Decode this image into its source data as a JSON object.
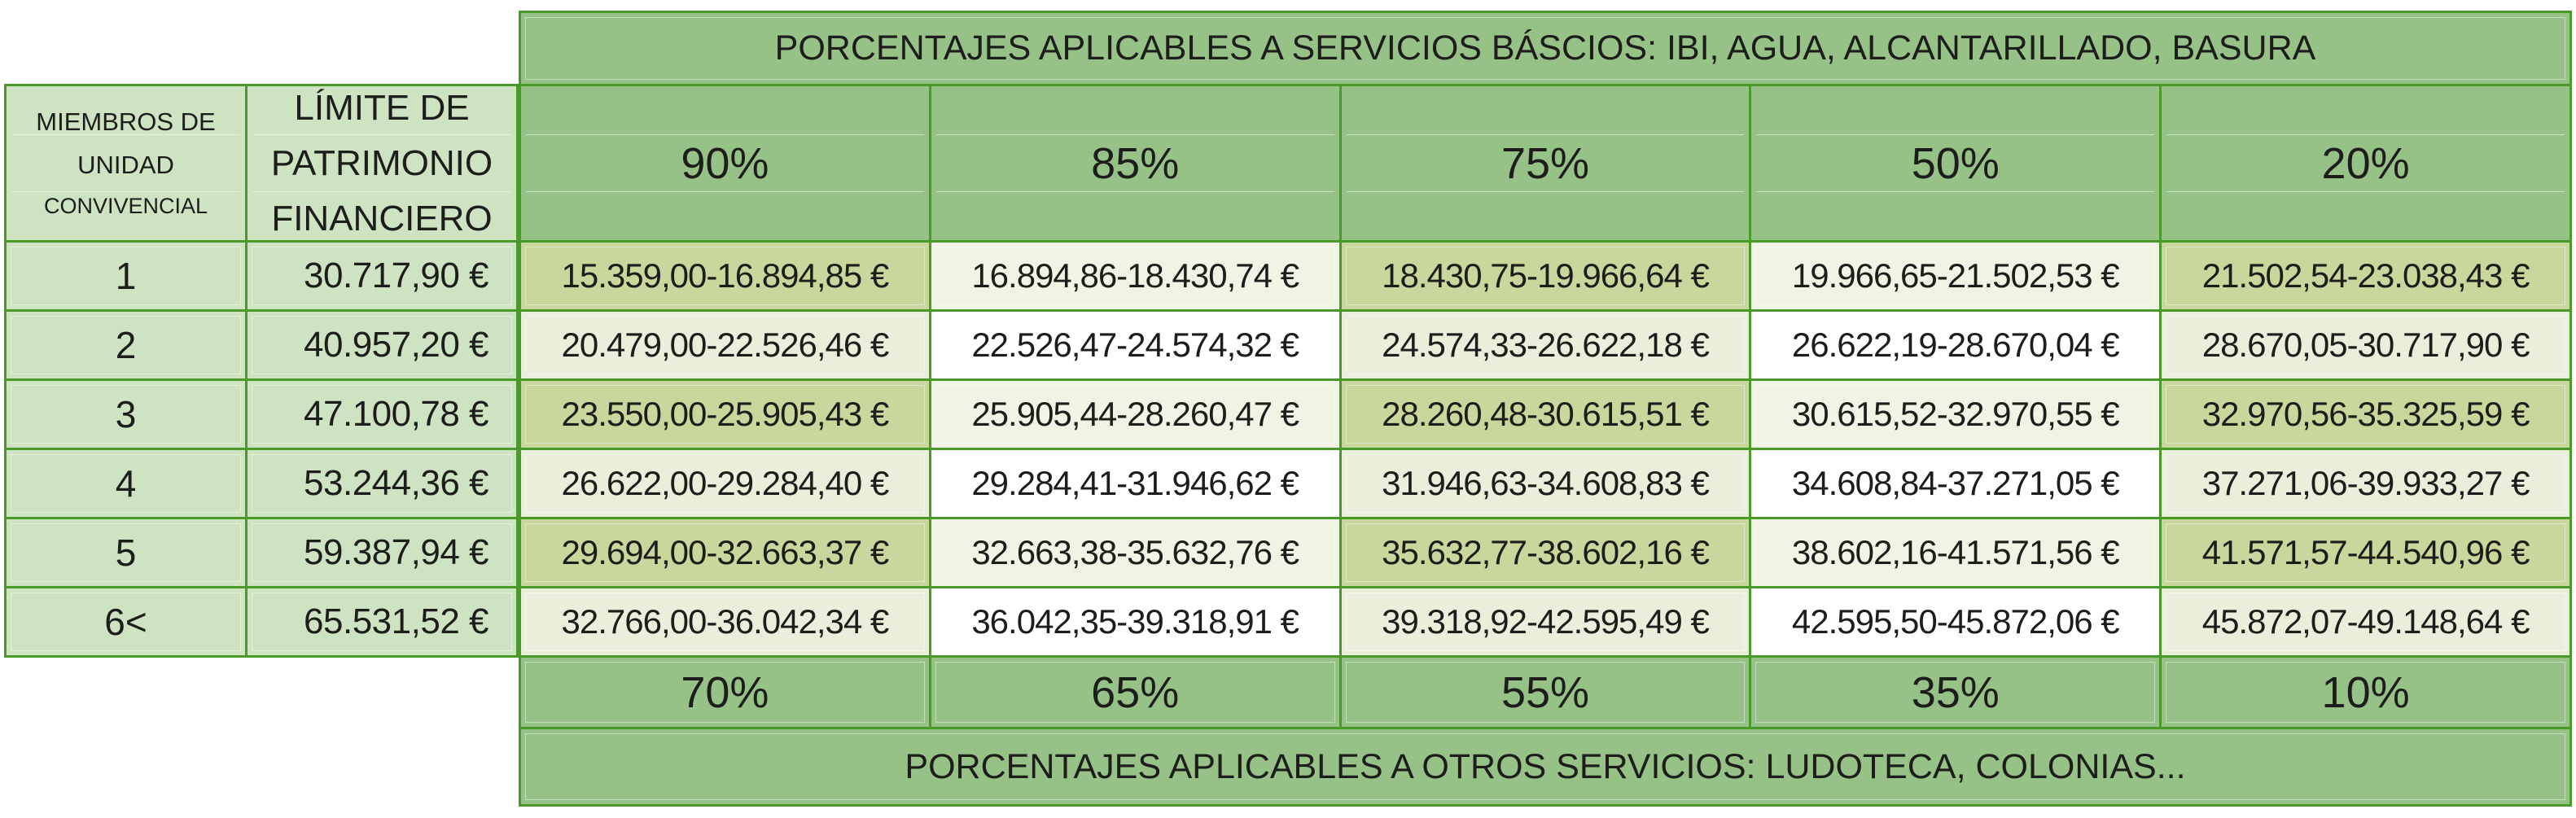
{
  "titles": {
    "top": "PORCENTAJES APLICABLES A SERVICIOS BÁSCIOS: IBI, AGUA, ALCANTARILLADO, BASURA",
    "bottom": "PORCENTAJES APLICABLES A OTROS SERVICIOS: LUDOTECA, COLONIAS..."
  },
  "left_header": {
    "col1_lines": [
      "MIEMBROS DE",
      "UNIDAD",
      "CONVIVENCIAL"
    ],
    "col2_lines": [
      "LÍMITE DE",
      "PATRIMONIO",
      "FINANCIERO"
    ]
  },
  "top_percentages": [
    "90%",
    "85%",
    "75%",
    "50%",
    "20%"
  ],
  "bottom_percentages": [
    "70%",
    "65%",
    "55%",
    "35%",
    "10%"
  ],
  "rows": [
    {
      "members": "1",
      "limit": "30.717,90 €",
      "ranges": [
        "15.359,00-16.894,85 €",
        "16.894,86-18.430,74 €",
        "18.430,75-19.966,64 €",
        "19.966,65-21.502,53 €",
        "21.502,54-23.038,43 €"
      ]
    },
    {
      "members": "2",
      "limit": "40.957,20 €",
      "ranges": [
        "20.479,00-22.526,46 €",
        "22.526,47-24.574,32 €",
        "24.574,33-26.622,18 €",
        "26.622,19-28.670,04 €",
        "28.670,05-30.717,90 €"
      ]
    },
    {
      "members": "3",
      "limit": "47.100,78 €",
      "ranges": [
        "23.550,00-25.905,43 €",
        "25.905,44-28.260,47 €",
        "28.260,48-30.615,51 €",
        "30.615,52-32.970,55 €",
        "32.970,56-35.325,59 €"
      ]
    },
    {
      "members": "4",
      "limit": "53.244,36 €",
      "ranges": [
        "26.622,00-29.284,40 €",
        "29.284,41-31.946,62 €",
        "31.946,63-34.608,83 €",
        "34.608,84-37.271,05 €",
        "37.271,06-39.933,27 €"
      ]
    },
    {
      "members": "5",
      "limit": "59.387,94 €",
      "ranges": [
        "29.694,00-32.663,37 €",
        "32.663,38-35.632,76 €",
        "35.632,77-38.602,16 €",
        "38.602,16-41.571,56 €",
        "41.571,57-44.540,96 €"
      ]
    },
    {
      "members": "6<",
      "limit": "65.531,52 €",
      "ranges": [
        "32.766,00-36.042,34 €",
        "36.042,35-39.318,91 €",
        "39.318,92-42.595,49 €",
        "42.595,50-45.872,06 €",
        "45.872,07-49.148,64 €"
      ]
    }
  ],
  "colors": {
    "border_green": "#4a9a2a",
    "header_green": "#97c287",
    "left_light_green": "#cde3c1",
    "olive": "#c9d79c",
    "pale_odd": "#f1f4e4",
    "pale_even": "#e9efda",
    "white": "#ffffff",
    "text": "#1d1d1b"
  }
}
